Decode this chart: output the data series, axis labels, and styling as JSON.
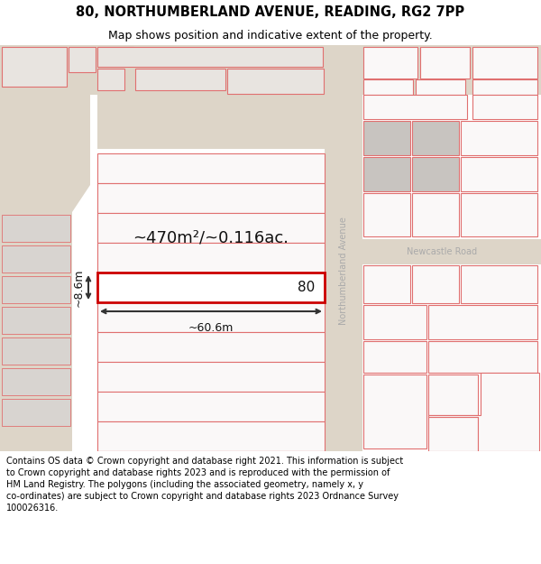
{
  "title_line1": "80, NORTHUMBERLAND AVENUE, READING, RG2 7PP",
  "title_line2": "Map shows position and indicative extent of the property.",
  "footer_text": "Contains OS data © Crown copyright and database right 2021. This information is subject to Crown copyright and database rights 2023 and is reproduced with the permission of HM Land Registry. The polygons (including the associated geometry, namely x, y co-ordinates) are subject to Crown copyright and database rights 2023 Ordnance Survey 100026316.",
  "map_bg": "#f7f4f0",
  "road_color": "#ddd5c8",
  "polygon_edge": "#e07070",
  "polygon_fill": "#faf8f8",
  "highlight_edge": "#cc0000",
  "highlight_fill": "#ffffff",
  "grey_block": "#c8c4c0",
  "road_label_color": "#aaaaaa",
  "annotation_color": "#111111",
  "arrow_color": "#333333",
  "measure_label": "~470m²/~0.116ac.",
  "width_label": "~60.6m",
  "height_label": "~8.6m",
  "property_number": "80",
  "northumberland_avenue_label": "Northumberland Avenue",
  "newcastle_road_label": "Newcastle Road",
  "footer_fontsize": 7.0,
  "title_fontsize1": 10.5,
  "title_fontsize2": 9.0
}
